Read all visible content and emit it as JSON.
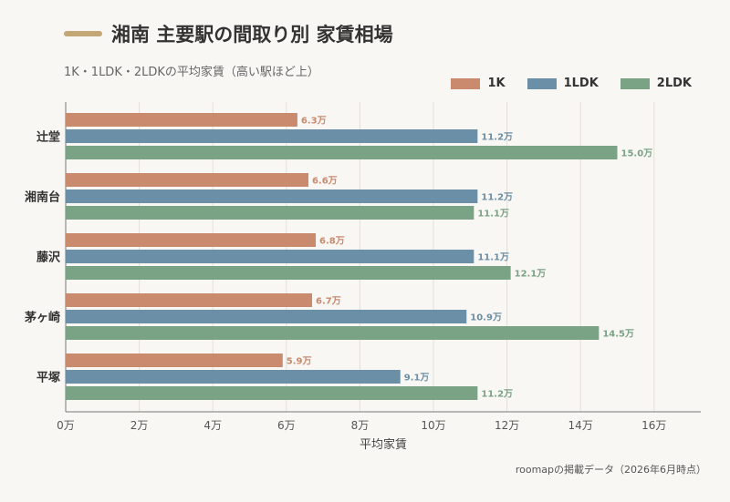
{
  "title": "湘南 主要駅の間取り別 家賃相場",
  "subtitle": "1K・1LDK・2LDKの平均家賃（高い駅ほど上）",
  "source": "roomapの掲載データ（2026年6月時点）",
  "chart_data": {
    "type": "bar",
    "orientation": "horizontal",
    "categories": [
      "辻堂",
      "湘南台",
      "藤沢",
      "茅ヶ崎",
      "平塚"
    ],
    "series": [
      {
        "name": "1K",
        "color": "#c98a6e",
        "values": [
          6.3,
          6.6,
          6.8,
          6.7,
          5.9
        ],
        "labels": [
          "6.3万",
          "6.6万",
          "6.8万",
          "6.7万",
          "5.9万"
        ]
      },
      {
        "name": "1LDK",
        "color": "#6b8fa6",
        "values": [
          11.2,
          11.2,
          11.1,
          10.9,
          9.1
        ],
        "labels": [
          "11.2万",
          "11.2万",
          "11.1万",
          "10.9万",
          "9.1万"
        ]
      },
      {
        "name": "2LDK",
        "color": "#7aa386",
        "values": [
          15.0,
          11.1,
          12.1,
          14.5,
          11.2
        ],
        "labels": [
          "15.0万",
          "11.1万",
          "12.1万",
          "14.5万",
          "11.2万"
        ]
      }
    ],
    "xlim": [
      0,
      17.5
    ],
    "xticks": [
      0,
      2,
      4,
      6,
      8,
      10,
      12,
      14,
      16
    ],
    "xtick_labels": [
      "0万",
      "2万",
      "4万",
      "6万",
      "8万",
      "10万",
      "12万",
      "14万",
      "16万"
    ],
    "xlabel": "平均家賃",
    "ylabel": "",
    "grid": "vertical",
    "legend": "top-right"
  }
}
